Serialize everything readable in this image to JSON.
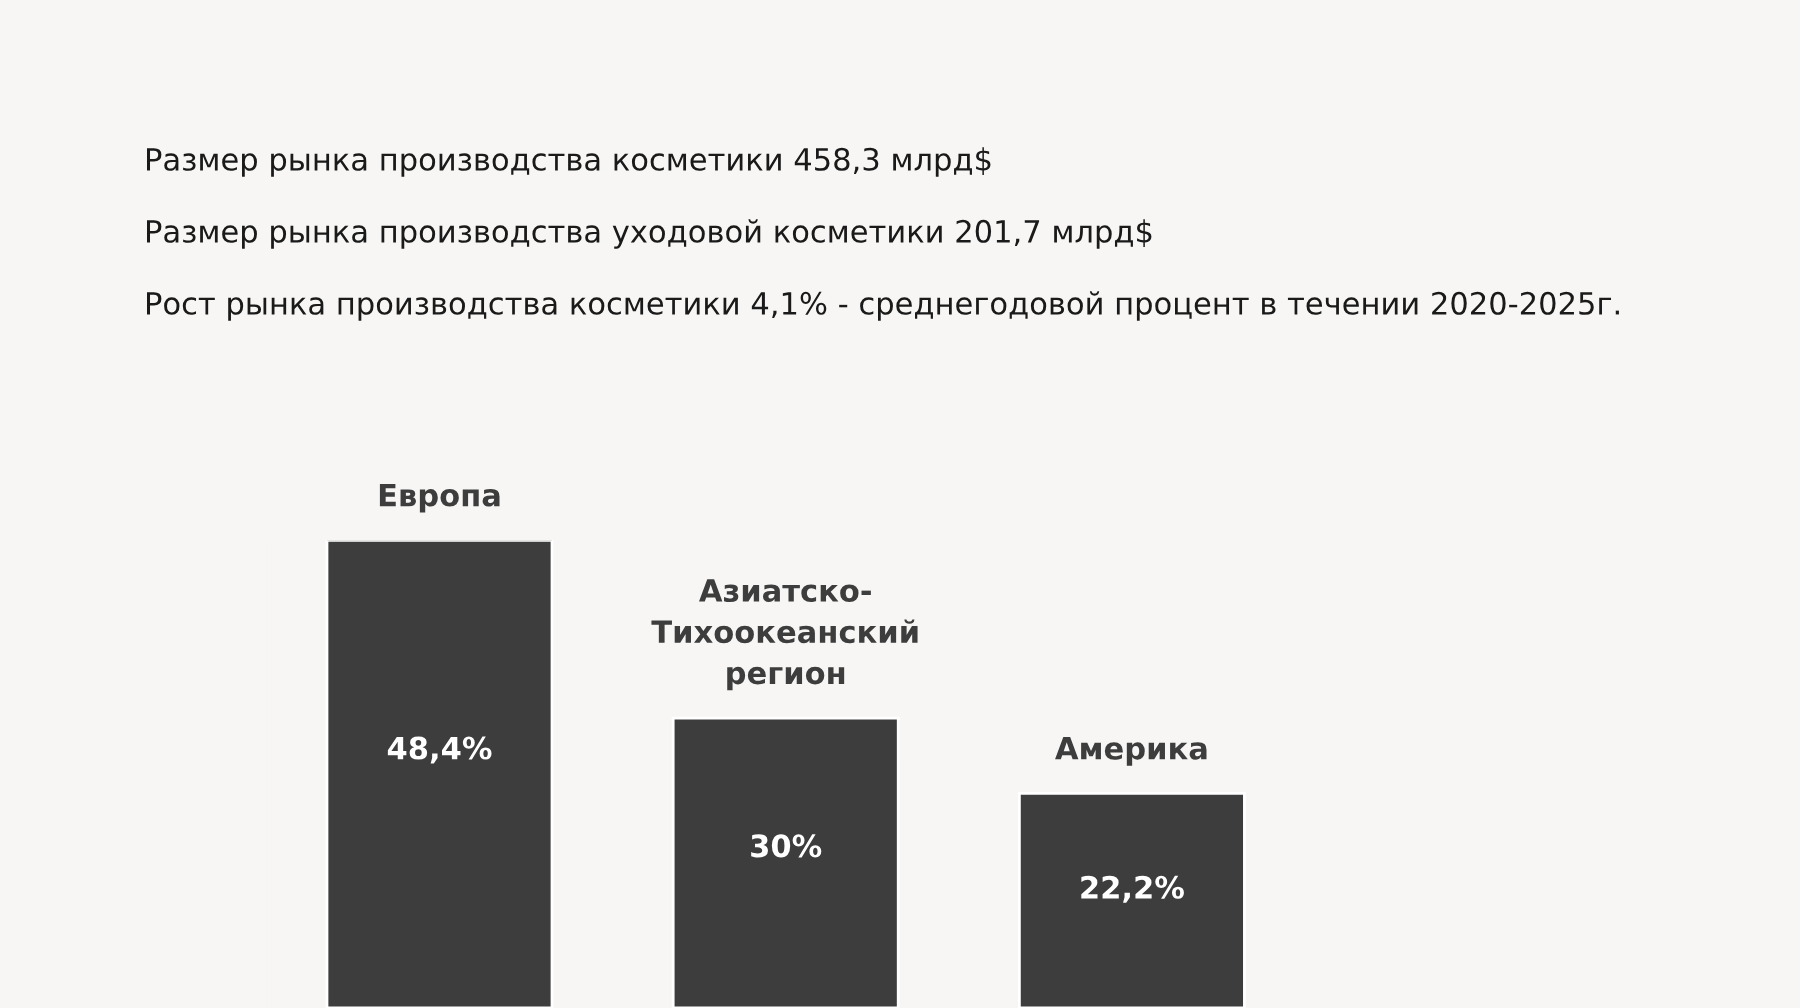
{
  "chart_data": {
    "type": "bar",
    "annotations": [
      "Размер рынка производства косметики 458,3 млрд$",
      "Размер рынка производства уходовой косметики 201,7 млрд$",
      "Рост рынка производства косметики 4,1% - среднегодовой процент в течении 2020-2025г."
    ],
    "categories": [
      "Европа",
      "Азиатско-\nТихоокеанский\nрегион",
      "Америка"
    ],
    "values": [
      48.4,
      30,
      22.2
    ],
    "value_labels": [
      "48,4%",
      "30%",
      "22,2%"
    ],
    "color": "#3d3d3d"
  }
}
